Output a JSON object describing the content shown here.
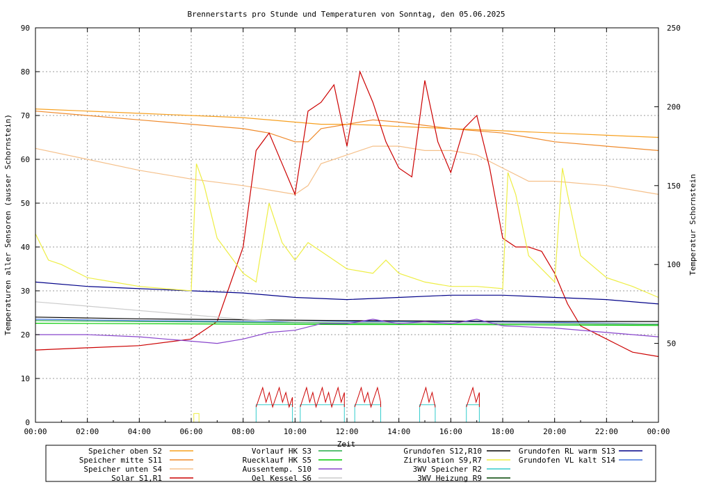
{
  "chart_data": {
    "type": "line",
    "title": "Brennerstarts pro Stunde und Temperaturen von Sonntag, den 05.06.2025",
    "xlabel": "Zeit",
    "ylabel": "Temperaturen aller Sensoren (ausser Schornstein)",
    "y2label": "Temperatur Schornstein",
    "y2label_color": "#ff66ff",
    "xlim": [
      0,
      24
    ],
    "ylim": [
      0,
      90
    ],
    "y2lim": [
      0,
      250
    ],
    "x_ticks": [
      "00:00",
      "02:00",
      "04:00",
      "06:00",
      "08:00",
      "10:00",
      "12:00",
      "14:00",
      "16:00",
      "18:00",
      "20:00",
      "22:00",
      "00:00"
    ],
    "y_ticks": [
      "0",
      "10",
      "20",
      "30",
      "40",
      "50",
      "60",
      "70",
      "80",
      "90"
    ],
    "y2_ticks": [
      "50",
      "100",
      "150",
      "200",
      "250"
    ],
    "y2_tick_values": [
      50,
      100,
      150,
      200,
      250
    ],
    "grid": true,
    "legend_position": "bottom",
    "legend": [
      {
        "label": "Speicher oben  S2",
        "color": "#f7a01f"
      },
      {
        "label": "Speicher mitte S11",
        "color": "#ef8a2b"
      },
      {
        "label": "Speicher unten S4",
        "color": "#f5c08a"
      },
      {
        "label": "Solar        S1,R1",
        "color": "#cc0000"
      },
      {
        "label": "Vorlauf HK     S3",
        "color": "#22aa44"
      },
      {
        "label": "Ruecklauf HK   S5",
        "color": "#00cc00"
      },
      {
        "label": "Aussentemp.   S10",
        "color": "#8844cc"
      },
      {
        "label": "Oel Kessel     S6",
        "color": "#cccccc"
      },
      {
        "label": "Grundofen    S12,R10",
        "color": "#000000"
      },
      {
        "label": "Zirkulation    S9,R7",
        "color": "#eeee44"
      },
      {
        "label": "3WV Speicher      R2",
        "color": "#33cccc"
      },
      {
        "label": "3WV Heizung    R9",
        "color": "#004400"
      },
      {
        "label": "Grundofen RL warm   S13",
        "color": "#000088"
      },
      {
        "label": "Grundofen VL kalt   S14",
        "color": "#4477dd"
      }
    ],
    "series": [
      {
        "name": "Speicher oben  S2",
        "color": "#f7a01f",
        "x": [
          0,
          2,
          4,
          6,
          8,
          10,
          11,
          12,
          13,
          14,
          16,
          18,
          20,
          22,
          24
        ],
        "y": [
          71.5,
          71,
          70.5,
          70,
          69.5,
          68.5,
          68,
          68,
          67.8,
          67.5,
          67,
          66.5,
          66,
          65.5,
          65
        ]
      },
      {
        "name": "Speicher mitte S11",
        "color": "#ef8a2b",
        "x": [
          0,
          2,
          4,
          6,
          8,
          9,
          10,
          10.5,
          11,
          12,
          13,
          14,
          16,
          18,
          19,
          20,
          22,
          24
        ],
        "y": [
          71,
          70,
          69,
          68,
          67,
          66,
          64,
          64,
          67,
          68,
          69,
          68.5,
          67,
          66,
          65,
          64,
          63,
          62
        ]
      },
      {
        "name": "Speicher unten S4",
        "color": "#f5c08a",
        "x": [
          0,
          2,
          4,
          6,
          8,
          9,
          10,
          10.5,
          11,
          12,
          13,
          14,
          15,
          16,
          17,
          18,
          19,
          20,
          22,
          24
        ],
        "y": [
          62.5,
          60,
          57.5,
          55.5,
          54,
          53,
          52,
          54,
          59,
          61,
          63,
          63,
          62,
          62,
          61,
          58,
          55,
          55,
          54,
          52
        ]
      },
      {
        "name": "Solar        S1,R1",
        "color": "#cc0000",
        "x": [
          0,
          2,
          4,
          6,
          7,
          8,
          8.5,
          9,
          9.5,
          10,
          10.5,
          11,
          11.5,
          12,
          12.5,
          13,
          13.5,
          14,
          14.5,
          15,
          15.5,
          16,
          16.5,
          17,
          17.5,
          18,
          18.5,
          19,
          19.5,
          20,
          20.5,
          21,
          22,
          23,
          24
        ],
        "y": [
          16.5,
          17,
          17.5,
          19,
          23,
          40,
          62,
          66,
          59,
          52,
          71,
          73,
          77,
          63,
          80,
          73,
          64,
          58,
          56,
          78,
          64,
          57,
          67,
          70,
          58,
          42,
          40,
          40,
          39,
          34,
          27,
          22,
          19,
          16,
          15
        ]
      },
      {
        "name": "Grundofen RL warm   S13",
        "color": "#000088",
        "x": [
          0,
          2,
          4,
          6,
          8,
          10,
          12,
          14,
          16,
          18,
          20,
          22,
          24
        ],
        "y": [
          32,
          31,
          30.5,
          30,
          29.5,
          28.5,
          28,
          28.5,
          29,
          29,
          28.5,
          28,
          27
        ]
      },
      {
        "name": "Grundofen VL kalt   S14",
        "color": "#4477dd",
        "x": [
          0,
          4,
          8,
          12,
          16,
          20,
          24
        ],
        "y": [
          23.5,
          23.2,
          23,
          23,
          23,
          22.8,
          22.5
        ]
      },
      {
        "name": "Grundofen    S12,R10",
        "color": "#000000",
        "x": [
          0,
          4,
          8,
          12,
          16,
          20,
          24
        ],
        "y": [
          24,
          23.6,
          23.4,
          23.2,
          23.1,
          23,
          23
        ]
      },
      {
        "name": "Vorlauf HK     S3",
        "color": "#22aa44",
        "x": [
          0,
          4,
          8,
          12,
          16,
          20,
          24
        ],
        "y": [
          23.2,
          23,
          22.8,
          22.6,
          22.6,
          22.5,
          22.3
        ]
      },
      {
        "name": "Ruecklauf HK   S5",
        "color": "#00cc00",
        "x": [
          0,
          4,
          8,
          12,
          16,
          20,
          24
        ],
        "y": [
          22.6,
          22.5,
          22.4,
          22.3,
          22.3,
          22.2,
          22.1
        ]
      },
      {
        "name": "Oel Kessel     S6",
        "color": "#cccccc",
        "x": [
          0,
          2,
          4,
          6,
          8,
          10,
          12,
          24
        ],
        "y": [
          27.5,
          26.5,
          25.5,
          24.5,
          23.5,
          23,
          22.8,
          22.5
        ]
      },
      {
        "name": "Aussentemp.   S10",
        "color": "#8844cc",
        "x": [
          0,
          2,
          4,
          5,
          6,
          7,
          8,
          9,
          10,
          11,
          12,
          13,
          14,
          15,
          16,
          17,
          18,
          20,
          22,
          24
        ],
        "y": [
          20,
          20,
          19.5,
          19,
          18.5,
          18,
          19,
          20.5,
          21,
          22.5,
          22.5,
          23.5,
          22.5,
          23,
          22.5,
          23.5,
          22,
          21.5,
          20.5,
          19.5
        ]
      },
      {
        "name": "Zirkulation    S9,R7",
        "color": "#eeee44",
        "x": [
          0,
          0.5,
          1,
          2,
          3,
          4,
          5,
          6,
          6.2,
          6.5,
          7,
          8,
          8.5,
          9,
          9.5,
          10,
          10.5,
          11,
          12,
          13,
          13.5,
          14,
          15,
          16,
          17,
          18,
          18.2,
          18.5,
          19,
          20,
          20.3,
          20.5,
          21,
          22,
          23,
          24
        ],
        "y": [
          43,
          37,
          36,
          33,
          32,
          31,
          30.5,
          30,
          59,
          54,
          42,
          34,
          32,
          50,
          41,
          37,
          41,
          39,
          35,
          34,
          37,
          34,
          32,
          31,
          31,
          30.5,
          57,
          52,
          38,
          32,
          58,
          52,
          38,
          33,
          31,
          28.5
        ]
      }
    ]
  }
}
